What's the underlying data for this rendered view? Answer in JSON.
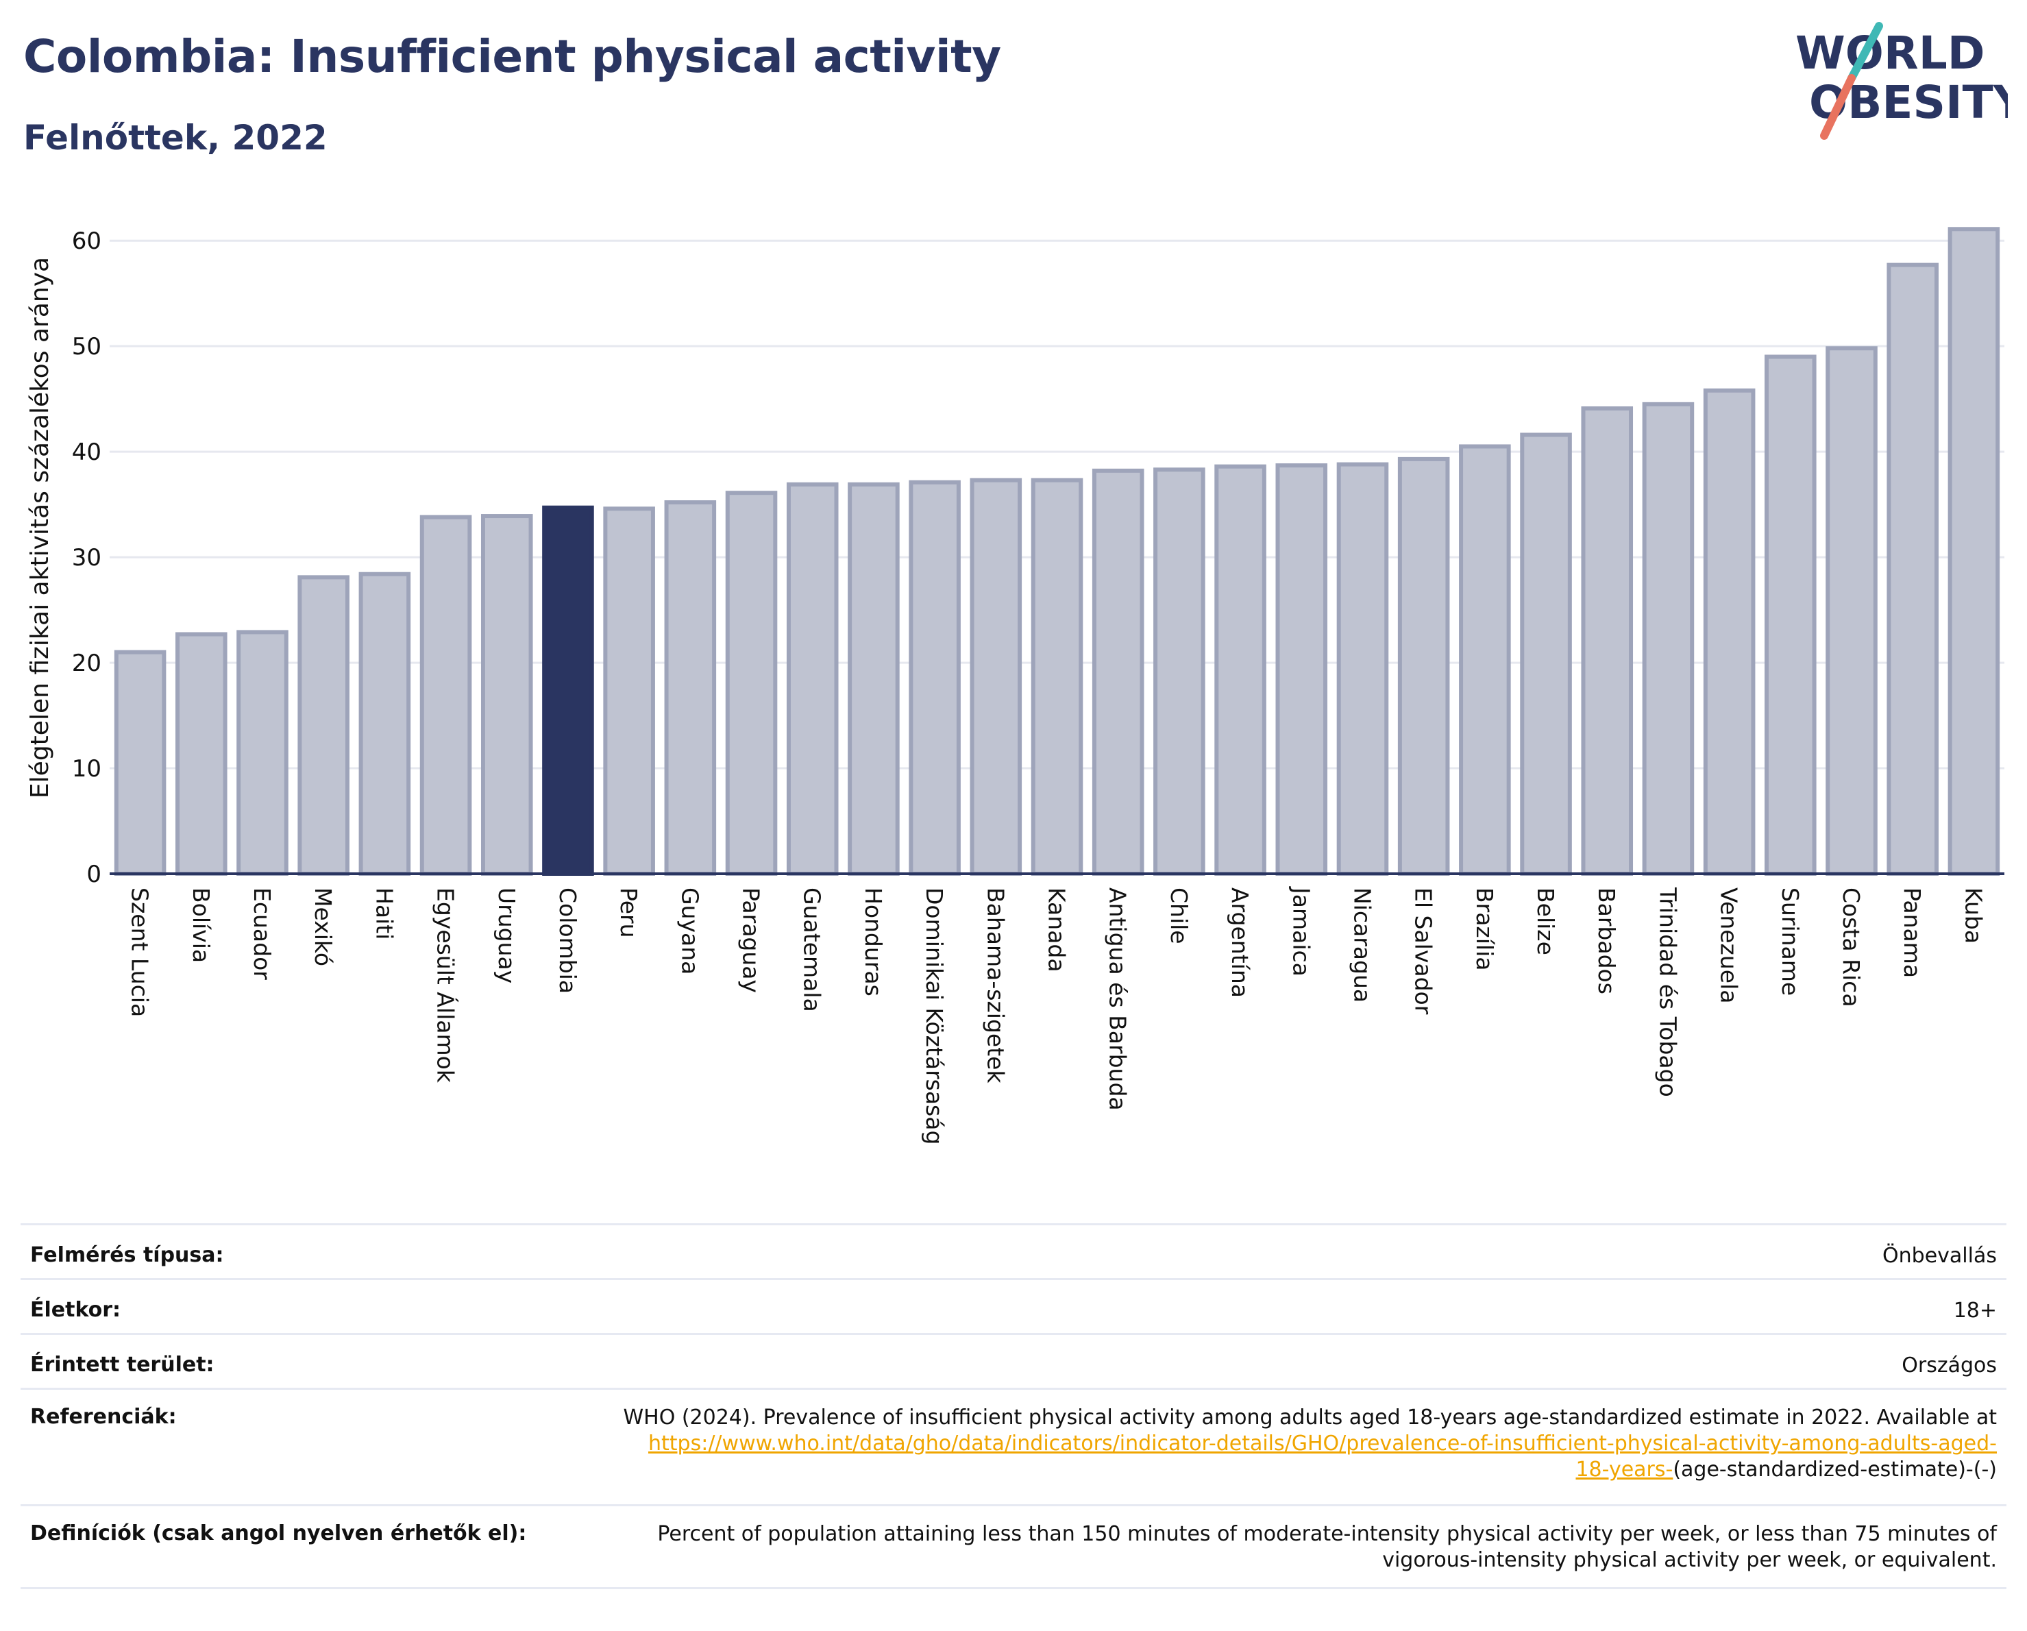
{
  "header": {
    "title": "Colombia: Insufficient physical activity",
    "subtitle": "Felnőttek, 2022"
  },
  "logo": {
    "line1": "WORLD",
    "line2": "OBESITY",
    "colors": {
      "text": "#2a3561",
      "teal": "#3fb8b5",
      "coral": "#e8735f"
    }
  },
  "chart_data": {
    "type": "bar",
    "title": "",
    "xlabel": "",
    "ylabel": "Elégtelen fizikai aktivitás százalékos aránya",
    "ylim": [
      0,
      63
    ],
    "yticks": [
      0,
      10,
      20,
      30,
      40,
      50,
      60
    ],
    "grid": true,
    "highlight": "Colombia",
    "colors": {
      "bar": "#bfc3d1",
      "bar_edge": "#9ea4ba",
      "highlight": "#2a3561",
      "grid": "#e6e8ef",
      "axis": "#2a3561"
    },
    "categories": [
      "Szent Lucia",
      "Bolívia",
      "Ecuador",
      "Mexikó",
      "Haiti",
      "Egyesült Államok",
      "Uruguay",
      "Colombia",
      "Peru",
      "Guyana",
      "Paraguay",
      "Guatemala",
      "Honduras",
      "Dominikai Köztársaság",
      "Bahama-szigetek",
      "Kanada",
      "Antigua és Barbuda",
      "Chile",
      "Argentína",
      "Jamaica",
      "Nicaragua",
      "El Salvador",
      "Brazília",
      "Belize",
      "Barbados",
      "Trinidad és Tobago",
      "Venezuela",
      "Suriname",
      "Costa Rica",
      "Panama",
      "Kuba"
    ],
    "values": [
      21.0,
      22.7,
      22.9,
      28.1,
      28.4,
      33.8,
      33.9,
      34.7,
      34.6,
      35.2,
      36.1,
      36.9,
      36.9,
      37.1,
      37.3,
      37.3,
      38.2,
      38.3,
      38.6,
      38.7,
      38.8,
      39.3,
      40.5,
      41.6,
      44.1,
      44.5,
      45.8,
      49.0,
      49.8,
      57.7,
      61.1
    ]
  },
  "info": {
    "survey_label": "Felmérés típusa:",
    "survey_value": "Önbevallás",
    "age_label": "Életkor:",
    "age_value": "18+",
    "area_label": "Érintett terület:",
    "area_value": "Országos",
    "ref_label": "Referenciák:",
    "ref_text1": "WHO (2024). Prevalence of insufficient physical activity among adults aged 18-years age-standardized estimate in 2022. Available at",
    "ref_link1": "https://www.who.int/data/gho/data/indicators/indicator-details/GHO/prevalence-of-insufficient-physical-activity-among-adults-aged-",
    "ref_link2": "18-years-",
    "ref_text2": "(age-standardized-estimate)-(-)",
    "def_label": "Definíciók (csak angol nyelven érhetők el):",
    "def_line1": "Percent of population attaining less than 150 minutes of moderate-intensity physical activity per week, or less than 75 minutes of",
    "def_line2": "vigorous-intensity physical activity per week, or equivalent."
  }
}
